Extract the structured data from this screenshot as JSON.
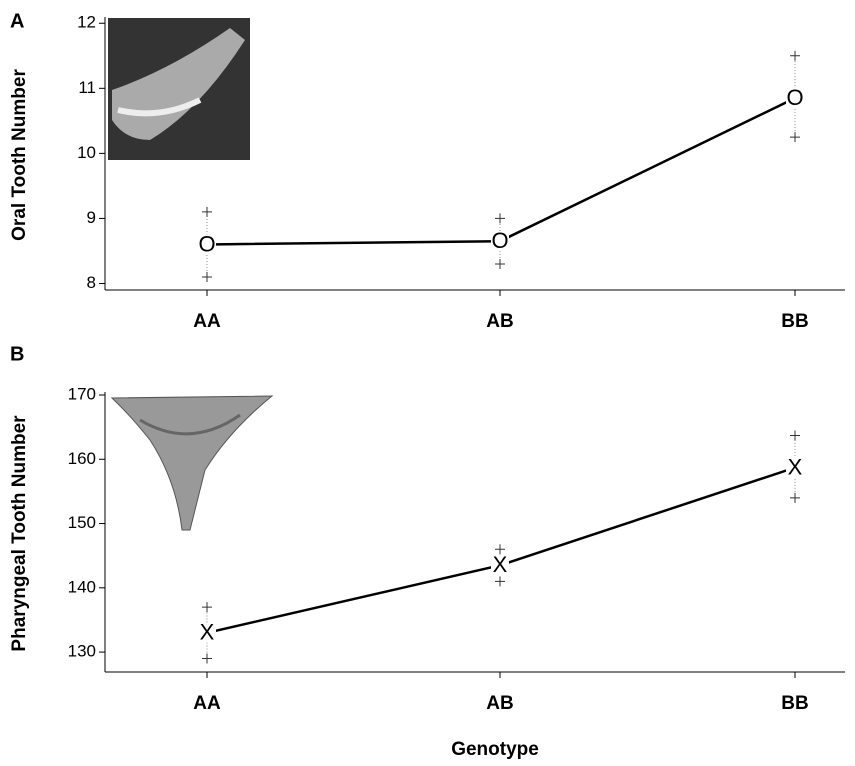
{
  "chart_data": [
    {
      "type": "line",
      "panel_label": "A",
      "ylabel": "Oral Tooth Number",
      "categories": [
        "AA",
        "AB",
        "BB"
      ],
      "marker": "O",
      "values": [
        8.6,
        8.65,
        10.85
      ],
      "upper": [
        9.1,
        9.0,
        11.5
      ],
      "lower": [
        8.1,
        8.3,
        10.25
      ],
      "color": "#000000",
      "ylim": [
        7.9,
        12.05
      ],
      "yticks": [
        8,
        9,
        10,
        11,
        12
      ]
    },
    {
      "type": "line",
      "panel_label": "B",
      "ylabel": "Pharyngeal Tooth Number",
      "xlabel": "Genotype",
      "categories": [
        "AA",
        "AB",
        "BB"
      ],
      "marker": "X",
      "values": [
        133,
        143.5,
        158.7
      ],
      "upper": [
        137,
        146,
        163.7
      ],
      "lower": [
        129,
        141,
        154
      ],
      "color": "#000000",
      "ylim": [
        126.9,
        170
      ],
      "yticks": [
        130,
        140,
        150,
        160,
        170
      ]
    }
  ]
}
